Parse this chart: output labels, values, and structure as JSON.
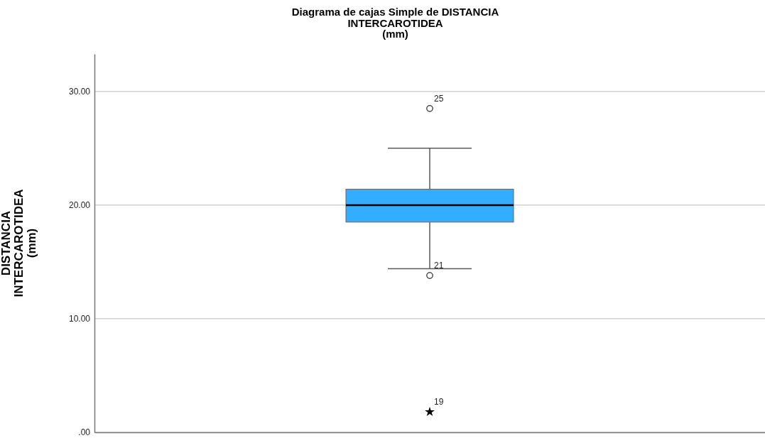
{
  "chart_data": {
    "type": "box",
    "title": "Diagrama de cajas Simple de DISTANCIA\nINTERCAROTIDEA\n(mm)",
    "ylabel": "DISTANCIA\nINTERCAROTIDEA\n(mm)",
    "categories": [
      null
    ],
    "series": [
      {
        "color": "#33adff",
        "boxes": [
          {
            "low": 14.4,
            "q1": 18.5,
            "median": 20.0,
            "q3": 21.4,
            "high": 25.0,
            "outliers": [
              28.5,
              13.8
            ]
          }
        ]
      },
      {
        "type": "scatter",
        "marker": "star",
        "color": "#000000",
        "values": [
          1.8
        ]
      }
    ],
    "ylim": [
      0,
      33.3
    ],
    "yticks": [
      {
        "value": 0,
        "label": ".00"
      },
      {
        "value": 10,
        "label": "10.00"
      },
      {
        "value": 20,
        "label": "20.00"
      },
      {
        "value": 30,
        "label": "30.00"
      }
    ],
    "grid": "y",
    "tick_labels": "y",
    "annotations": [
      "25",
      "21",
      "19"
    ]
  }
}
